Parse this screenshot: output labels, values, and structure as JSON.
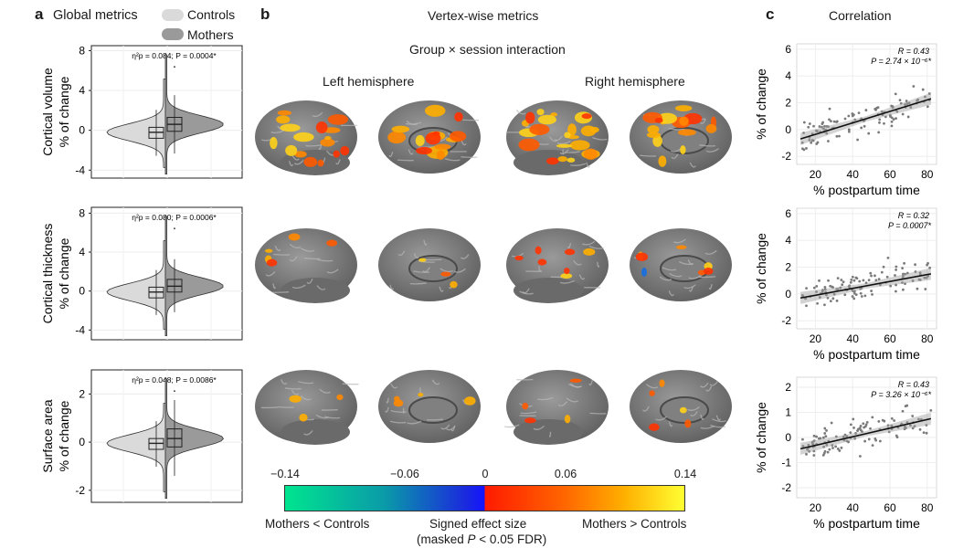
{
  "panels": {
    "a": {
      "letter": "a",
      "title": "Global metrics"
    },
    "b": {
      "letter": "b",
      "title": "Vertex-wise metrics",
      "subtitle": "Group × session interaction",
      "left_hemisphere": "Left hemisphere",
      "right_hemisphere": "Right hemisphere"
    },
    "c": {
      "letter": "c",
      "title": "Correlation"
    }
  },
  "legend": {
    "controls": "Controls",
    "mothers": "Mothers",
    "controls_color": "#dadada",
    "mothers_color": "#9a9a9a"
  },
  "colorbar": {
    "ticks": [
      "−0.14",
      "−0.06",
      "0",
      "0.06",
      "0.14"
    ],
    "left_label": "Mothers < Controls",
    "center_label": "Signed effect size",
    "center_sublabel_pre": "(masked ",
    "center_sublabel_p": "P",
    "center_sublabel_post": " < 0.05 FDR)",
    "right_label": "Mothers > Controls",
    "range": [
      -0.14,
      0.14
    ]
  },
  "chart_data": [
    {
      "type": "violin",
      "panel": "a",
      "ylabel": "Cortical volume",
      "ylabel2": "% of change",
      "yticks": [
        -4,
        0,
        4,
        8
      ],
      "ylim": [
        -4.8,
        8.5
      ],
      "stat": "η²p = 0.084; P = 0.0004*",
      "groups": [
        {
          "name": "Controls",
          "median": -0.2,
          "q1": -0.8,
          "q3": 0.3
        },
        {
          "name": "Mothers",
          "median": 0.6,
          "q1": -0.1,
          "q3": 1.3
        }
      ]
    },
    {
      "type": "violin",
      "panel": "a",
      "ylabel": "Cortical thickness",
      "ylabel2": "% of change",
      "yticks": [
        -4,
        0,
        4,
        8
      ],
      "ylim": [
        -5,
        8.6
      ],
      "stat": "η²p = 0.080; P = 0.0006*",
      "groups": [
        {
          "name": "Controls",
          "median": -0.1,
          "q1": -0.7,
          "q3": 0.4
        },
        {
          "name": "Mothers",
          "median": 0.5,
          "q1": -0.1,
          "q3": 1.2
        }
      ]
    },
    {
      "type": "violin",
      "panel": "a",
      "ylabel": "Surface area",
      "ylabel2": "% of change",
      "yticks": [
        -2,
        0,
        2
      ],
      "ylim": [
        -2.5,
        3
      ],
      "stat": "η²p = 0.048; P = 0.0086*",
      "groups": [
        {
          "name": "Controls",
          "median": -0.05,
          "q1": -0.3,
          "q3": 0.15
        },
        {
          "name": "Mothers",
          "median": 0.15,
          "q1": -0.2,
          "q3": 0.55
        }
      ]
    },
    {
      "type": "scatter",
      "panel": "c",
      "xlabel": "% postpartum time",
      "ylabel": "% of change",
      "xlim": [
        10,
        85
      ],
      "ylim": [
        -2.6,
        6.4
      ],
      "xticks": [
        20,
        40,
        60,
        80
      ],
      "yticks": [
        -2,
        0,
        2,
        4,
        6
      ],
      "r": "R = 0.43",
      "p": "P = 2.74 × 10⁻⁶*",
      "fit": [
        [
          12,
          -0.7
        ],
        [
          82,
          2.3
        ]
      ]
    },
    {
      "type": "scatter",
      "panel": "c",
      "xlabel": "% postpartum time",
      "ylabel": "% of change",
      "xlim": [
        10,
        85
      ],
      "ylim": [
        -2.6,
        6.4
      ],
      "xticks": [
        20,
        40,
        60,
        80
      ],
      "yticks": [
        -2,
        0,
        2,
        4,
        6
      ],
      "r": "R = 0.32",
      "p": "P = 0.0007*",
      "fit": [
        [
          12,
          -0.3
        ],
        [
          82,
          1.5
        ]
      ]
    },
    {
      "type": "scatter",
      "panel": "c",
      "xlabel": "% postpartum time",
      "ylabel": "% of change",
      "xlim": [
        10,
        85
      ],
      "ylim": [
        -2.4,
        2.4
      ],
      "xticks": [
        20,
        40,
        60,
        80
      ],
      "yticks": [
        -2,
        -1,
        0,
        1,
        2
      ],
      "r": "R = 0.43",
      "p": "P = 3.26 × 10⁻⁶*",
      "fit": [
        [
          12,
          -0.45
        ],
        [
          82,
          0.75
        ]
      ]
    }
  ]
}
